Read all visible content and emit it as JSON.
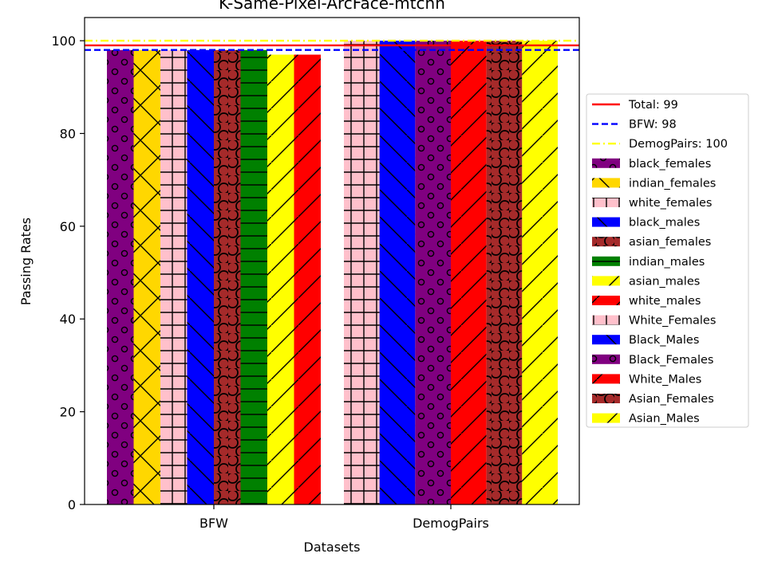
{
  "chart_data": {
    "type": "bar",
    "title": "K-Same-Pixel-ArcFace-mtcnn",
    "xlabel": "Datasets",
    "ylabel": "Passing Rates",
    "ylim": [
      0,
      105
    ],
    "yticks": [
      0,
      20,
      40,
      60,
      80,
      100
    ],
    "grid": false,
    "legend_position": "right",
    "categories": [
      "BFW",
      "DemogPairs"
    ],
    "reference_lines": [
      {
        "label": "Total: 99",
        "value": 99,
        "color": "#ff0000",
        "style": "solid"
      },
      {
        "label": "BFW: 98",
        "value": 98,
        "color": "#0000ff",
        "style": "dashed"
      },
      {
        "label": "DemogPairs: 100",
        "value": 100,
        "color": "#ffff00",
        "style": "dashdot"
      }
    ],
    "series": [
      {
        "name": "black_females",
        "category": "BFW",
        "value": 98,
        "color": "#800080",
        "hatch": "o"
      },
      {
        "name": "indian_females",
        "category": "BFW",
        "value": 98,
        "color": "#ffd700",
        "hatch": "x"
      },
      {
        "name": "white_females",
        "category": "BFW",
        "value": 98,
        "color": "#ffc0cb",
        "hatch": "+"
      },
      {
        "name": "black_males",
        "category": "BFW",
        "value": 98,
        "color": "#0000ff",
        "hatch": "\\"
      },
      {
        "name": "asian_females",
        "category": "BFW",
        "value": 98,
        "color": "#a52a2a",
        "hatch": "O"
      },
      {
        "name": "indian_males",
        "category": "BFW",
        "value": 98,
        "color": "#008000",
        "hatch": "-"
      },
      {
        "name": "asian_males",
        "category": "BFW",
        "value": 97,
        "color": "#ffff00",
        "hatch": "/"
      },
      {
        "name": "white_males",
        "category": "BFW",
        "value": 97,
        "color": "#ff0000",
        "hatch": "/"
      },
      {
        "name": "White_Females",
        "category": "DemogPairs",
        "value": 100,
        "color": "#ffc0cb",
        "hatch": "+"
      },
      {
        "name": "Black_Males",
        "category": "DemogPairs",
        "value": 100,
        "color": "#0000ff",
        "hatch": "\\"
      },
      {
        "name": "Black_Females",
        "category": "DemogPairs",
        "value": 100,
        "color": "#800080",
        "hatch": "o"
      },
      {
        "name": "White_Males",
        "category": "DemogPairs",
        "value": 100,
        "color": "#ff0000",
        "hatch": "/"
      },
      {
        "name": "Asian_Females",
        "category": "DemogPairs",
        "value": 100,
        "color": "#a52a2a",
        "hatch": "O"
      },
      {
        "name": "Asian_Males",
        "category": "DemogPairs",
        "value": 100,
        "color": "#ffff00",
        "hatch": "/"
      }
    ]
  }
}
